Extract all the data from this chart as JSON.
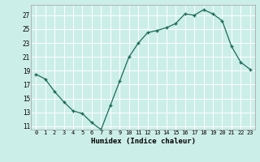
{
  "x": [
    0,
    1,
    2,
    3,
    4,
    5,
    6,
    7,
    8,
    9,
    10,
    11,
    12,
    13,
    14,
    15,
    16,
    17,
    18,
    19,
    20,
    21,
    22,
    23
  ],
  "y": [
    18.5,
    17.8,
    16.0,
    14.5,
    13.2,
    12.8,
    11.5,
    10.5,
    14.0,
    17.5,
    21.0,
    23.0,
    24.5,
    24.8,
    25.2,
    25.8,
    27.2,
    27.0,
    27.8,
    27.2,
    26.2,
    22.5,
    20.2,
    19.2
  ],
  "xlabel": "Humidex (Indice chaleur)",
  "xlim": [
    -0.5,
    23.5
  ],
  "ylim": [
    10.5,
    28.5
  ],
  "yticks": [
    11,
    13,
    15,
    17,
    19,
    21,
    23,
    25,
    27
  ],
  "xtick_labels": [
    "0",
    "1",
    "2",
    "3",
    "4",
    "5",
    "6",
    "7",
    "8",
    "9",
    "10",
    "11",
    "12",
    "13",
    "14",
    "15",
    "16",
    "17",
    "18",
    "19",
    "20",
    "21",
    "22",
    "23"
  ],
  "line_color": "#1a6b5a",
  "marker": "+",
  "bg_color": "#cceee8",
  "grid_color": "#ffffff",
  "grid_minor_color": "#e8f8f5",
  "border_color": "#aaaaaa"
}
